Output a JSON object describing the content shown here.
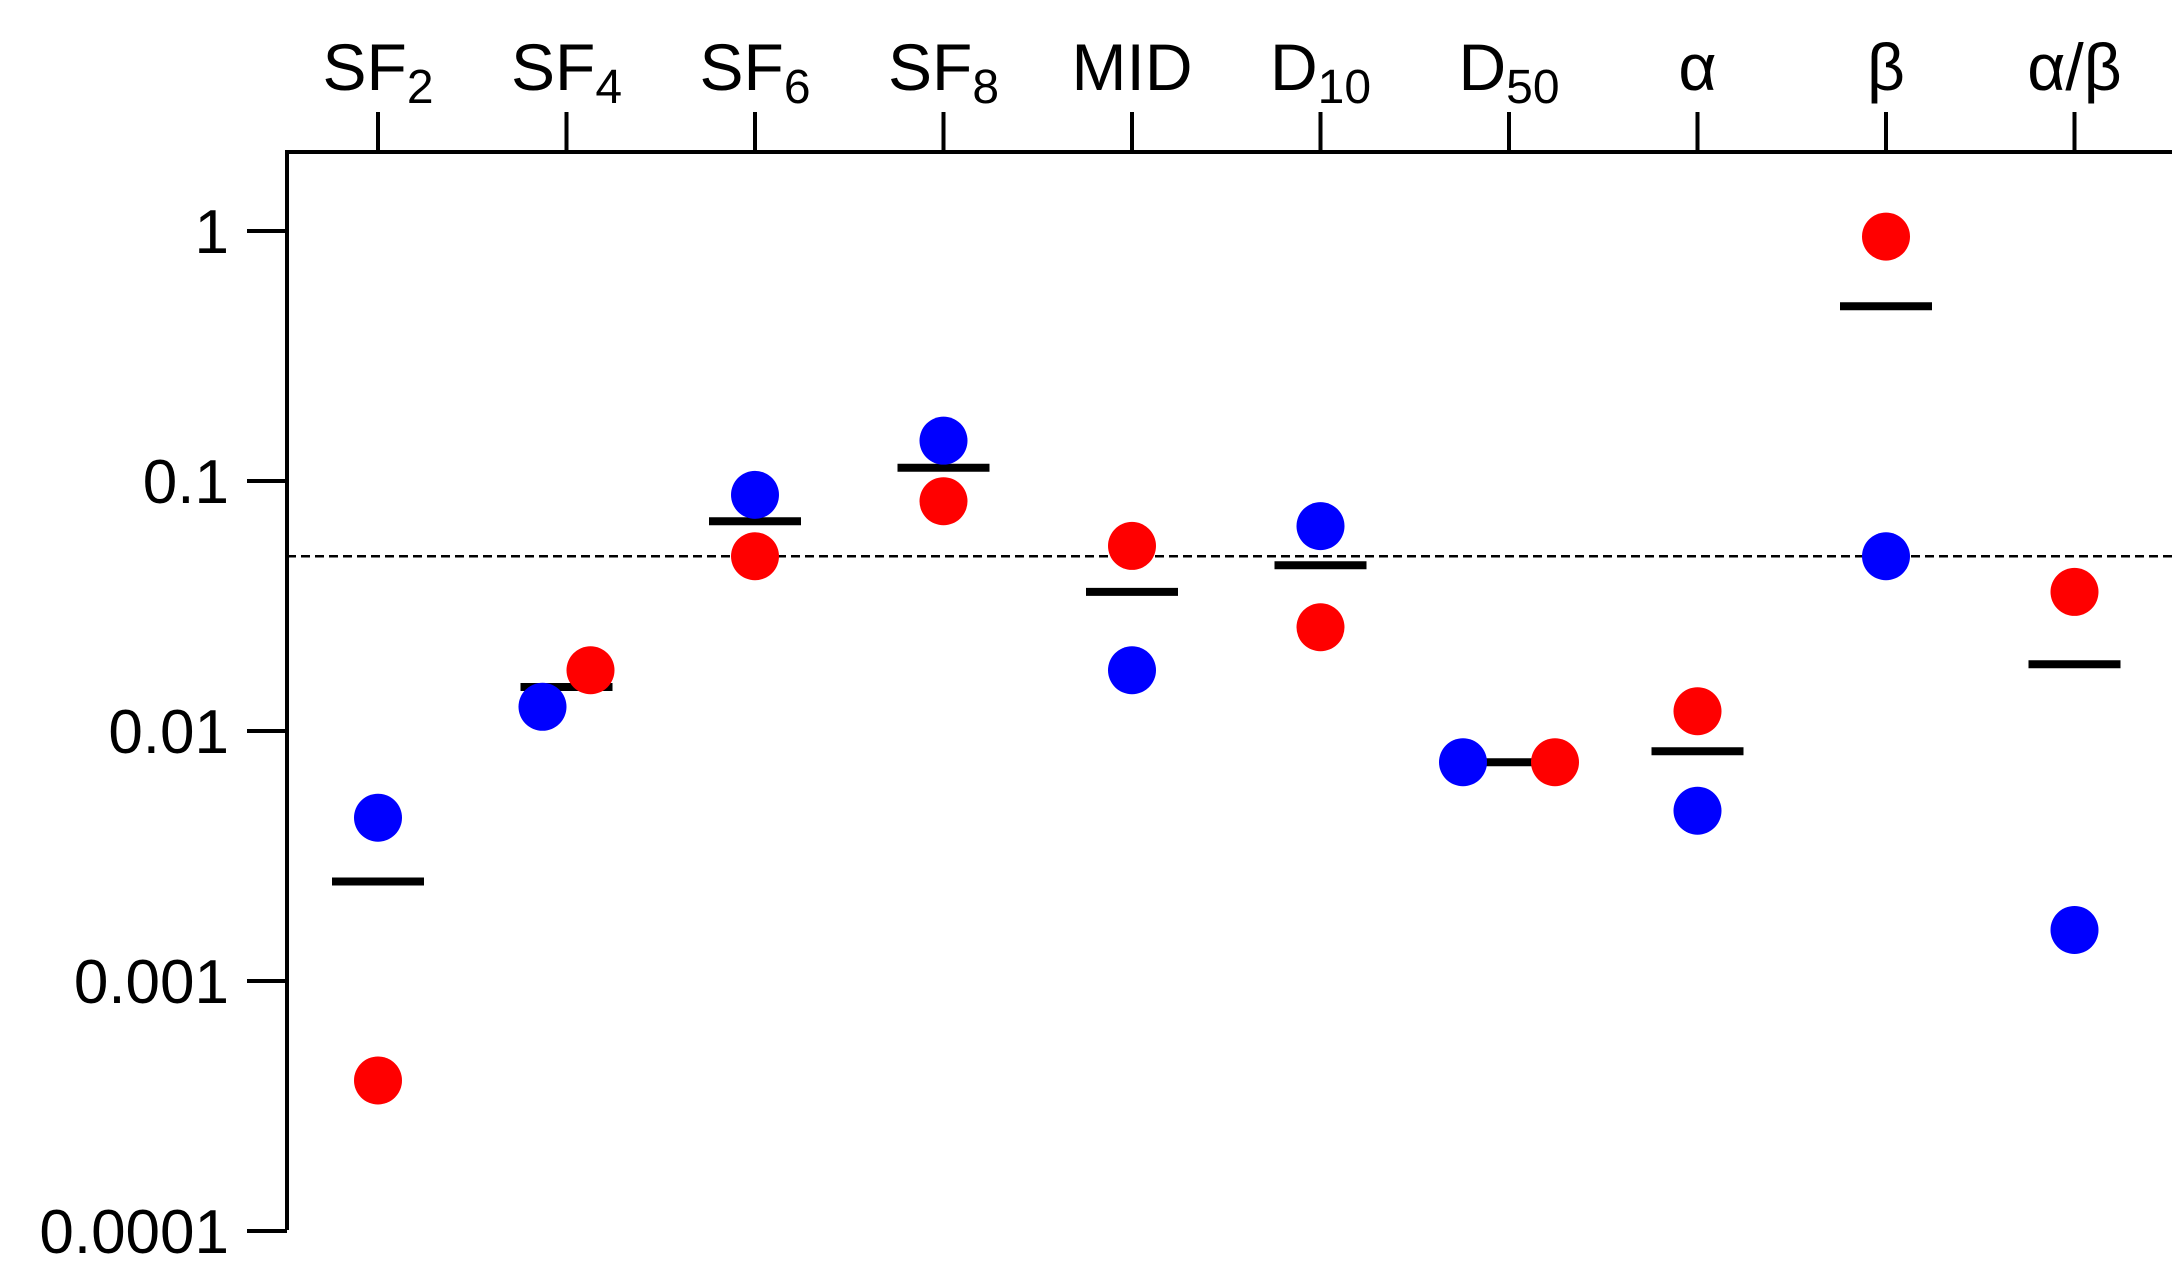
{
  "chart_data": {
    "type": "scatter",
    "title": "",
    "xlabel": "",
    "ylabel": "",
    "y_scale": "log",
    "ylim": [
      0.0001,
      2
    ],
    "y_ticks": [
      "1",
      "0.1",
      "0.01",
      "0.001",
      "0.0001"
    ],
    "y_tick_values": [
      1,
      0.1,
      0.01,
      0.001,
      0.0001
    ],
    "x_axis_position": "top",
    "grid": false,
    "legend": "none",
    "reference_line": {
      "value": 0.05,
      "style": "dashed"
    },
    "categories": [
      {
        "base": "SF",
        "sub": "2"
      },
      {
        "base": "SF",
        "sub": "4"
      },
      {
        "base": "SF",
        "sub": "6"
      },
      {
        "base": "SF",
        "sub": "8"
      },
      {
        "base": "MID",
        "sub": ""
      },
      {
        "base": "D",
        "sub": "10"
      },
      {
        "base": "D",
        "sub": "50"
      },
      {
        "base": "α",
        "sub": ""
      },
      {
        "base": "β",
        "sub": ""
      },
      {
        "base": "α/β",
        "sub": ""
      }
    ],
    "series": [
      {
        "color": "#0000ff",
        "values": [
          0.0045,
          0.0125,
          0.088,
          0.145,
          0.0175,
          0.066,
          0.0075,
          0.0048,
          0.05,
          0.0016
        ]
      },
      {
        "color": "#ff0000",
        "values": [
          0.0004,
          0.0175,
          0.05,
          0.083,
          0.055,
          0.026,
          0.0075,
          0.012,
          0.95,
          0.036
        ]
      },
      {
        "color": "#000000",
        "marker": "bar",
        "values": [
          0.0025,
          0.015,
          0.069,
          0.113,
          0.036,
          0.046,
          0.0075,
          0.0083,
          0.5,
          0.0185
        ]
      }
    ]
  }
}
